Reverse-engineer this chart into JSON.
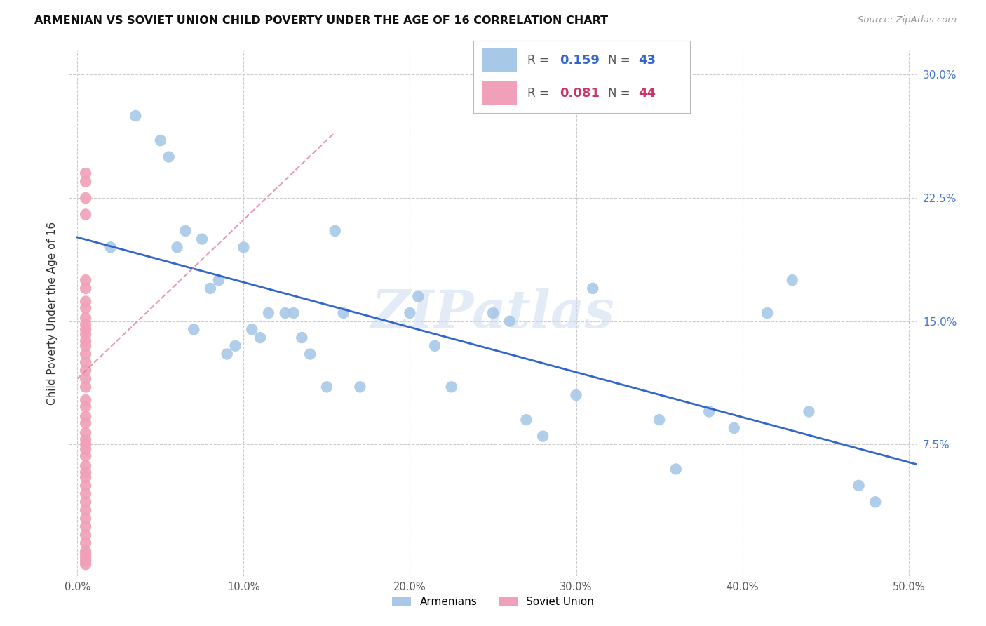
{
  "title": "ARMENIAN VS SOVIET UNION CHILD POVERTY UNDER THE AGE OF 16 CORRELATION CHART",
  "source": "Source: ZipAtlas.com",
  "ylabel": "Child Poverty Under the Age of 16",
  "xlim": [
    -0.005,
    0.505
  ],
  "ylim": [
    -0.005,
    0.315
  ],
  "xticks": [
    0.0,
    0.1,
    0.2,
    0.3,
    0.4,
    0.5
  ],
  "xtick_labels": [
    "0.0%",
    "10.0%",
    "20.0%",
    "30.0%",
    "40.0%",
    "50.0%"
  ],
  "yticks_right": [
    0.075,
    0.15,
    0.225,
    0.3
  ],
  "ytick_labels_right": [
    "7.5%",
    "15.0%",
    "22.5%",
    "30.0%"
  ],
  "armenians_R": "0.159",
  "armenians_N": "43",
  "soviet_R": "0.081",
  "soviet_N": "44",
  "armenians_color": "#a8c8e8",
  "soviet_color": "#f0a0b8",
  "trendline_armenians_color": "#3366cc",
  "trendline_soviet_color": "#dd7799",
  "watermark": "ZIPatlas",
  "armenians_x": [
    0.02,
    0.035,
    0.05,
    0.055,
    0.06,
    0.065,
    0.07,
    0.075,
    0.08,
    0.085,
    0.09,
    0.095,
    0.1,
    0.105,
    0.11,
    0.115,
    0.125,
    0.13,
    0.135,
    0.14,
    0.15,
    0.155,
    0.16,
    0.17,
    0.2,
    0.205,
    0.215,
    0.225,
    0.25,
    0.26,
    0.27,
    0.28,
    0.3,
    0.31,
    0.35,
    0.36,
    0.38,
    0.395,
    0.415,
    0.43,
    0.44,
    0.47,
    0.48
  ],
  "armenians_y": [
    0.195,
    0.275,
    0.26,
    0.25,
    0.195,
    0.205,
    0.145,
    0.2,
    0.17,
    0.175,
    0.13,
    0.135,
    0.195,
    0.145,
    0.14,
    0.155,
    0.155,
    0.155,
    0.14,
    0.13,
    0.11,
    0.205,
    0.155,
    0.11,
    0.155,
    0.165,
    0.135,
    0.11,
    0.155,
    0.15,
    0.09,
    0.08,
    0.105,
    0.17,
    0.09,
    0.06,
    0.095,
    0.085,
    0.155,
    0.175,
    0.095,
    0.05,
    0.04
  ],
  "soviet_x": [
    0.005,
    0.005,
    0.005,
    0.005,
    0.005,
    0.005,
    0.005,
    0.005,
    0.005,
    0.005,
    0.005,
    0.005,
    0.005,
    0.005,
    0.005,
    0.005,
    0.005,
    0.005,
    0.005,
    0.005,
    0.005,
    0.005,
    0.005,
    0.005,
    0.005,
    0.005,
    0.005,
    0.005,
    0.005,
    0.005,
    0.005,
    0.005,
    0.005,
    0.005,
    0.005,
    0.005,
    0.005,
    0.005,
    0.005,
    0.005,
    0.005,
    0.005,
    0.005,
    0.005
  ],
  "soviet_y": [
    0.24,
    0.235,
    0.225,
    0.215,
    0.175,
    0.17,
    0.162,
    0.158,
    0.152,
    0.148,
    0.145,
    0.142,
    0.138,
    0.135,
    0.13,
    0.125,
    0.12,
    0.115,
    0.11,
    0.102,
    0.098,
    0.092,
    0.088,
    0.082,
    0.078,
    0.075,
    0.072,
    0.068,
    0.062,
    0.058,
    0.055,
    0.05,
    0.045,
    0.04,
    0.035,
    0.03,
    0.025,
    0.02,
    0.015,
    0.01,
    0.008,
    0.006,
    0.004,
    0.002
  ],
  "soviet_trendline_x": [
    0.0,
    0.155
  ],
  "soviet_trendline_y": [
    0.115,
    0.265
  ]
}
